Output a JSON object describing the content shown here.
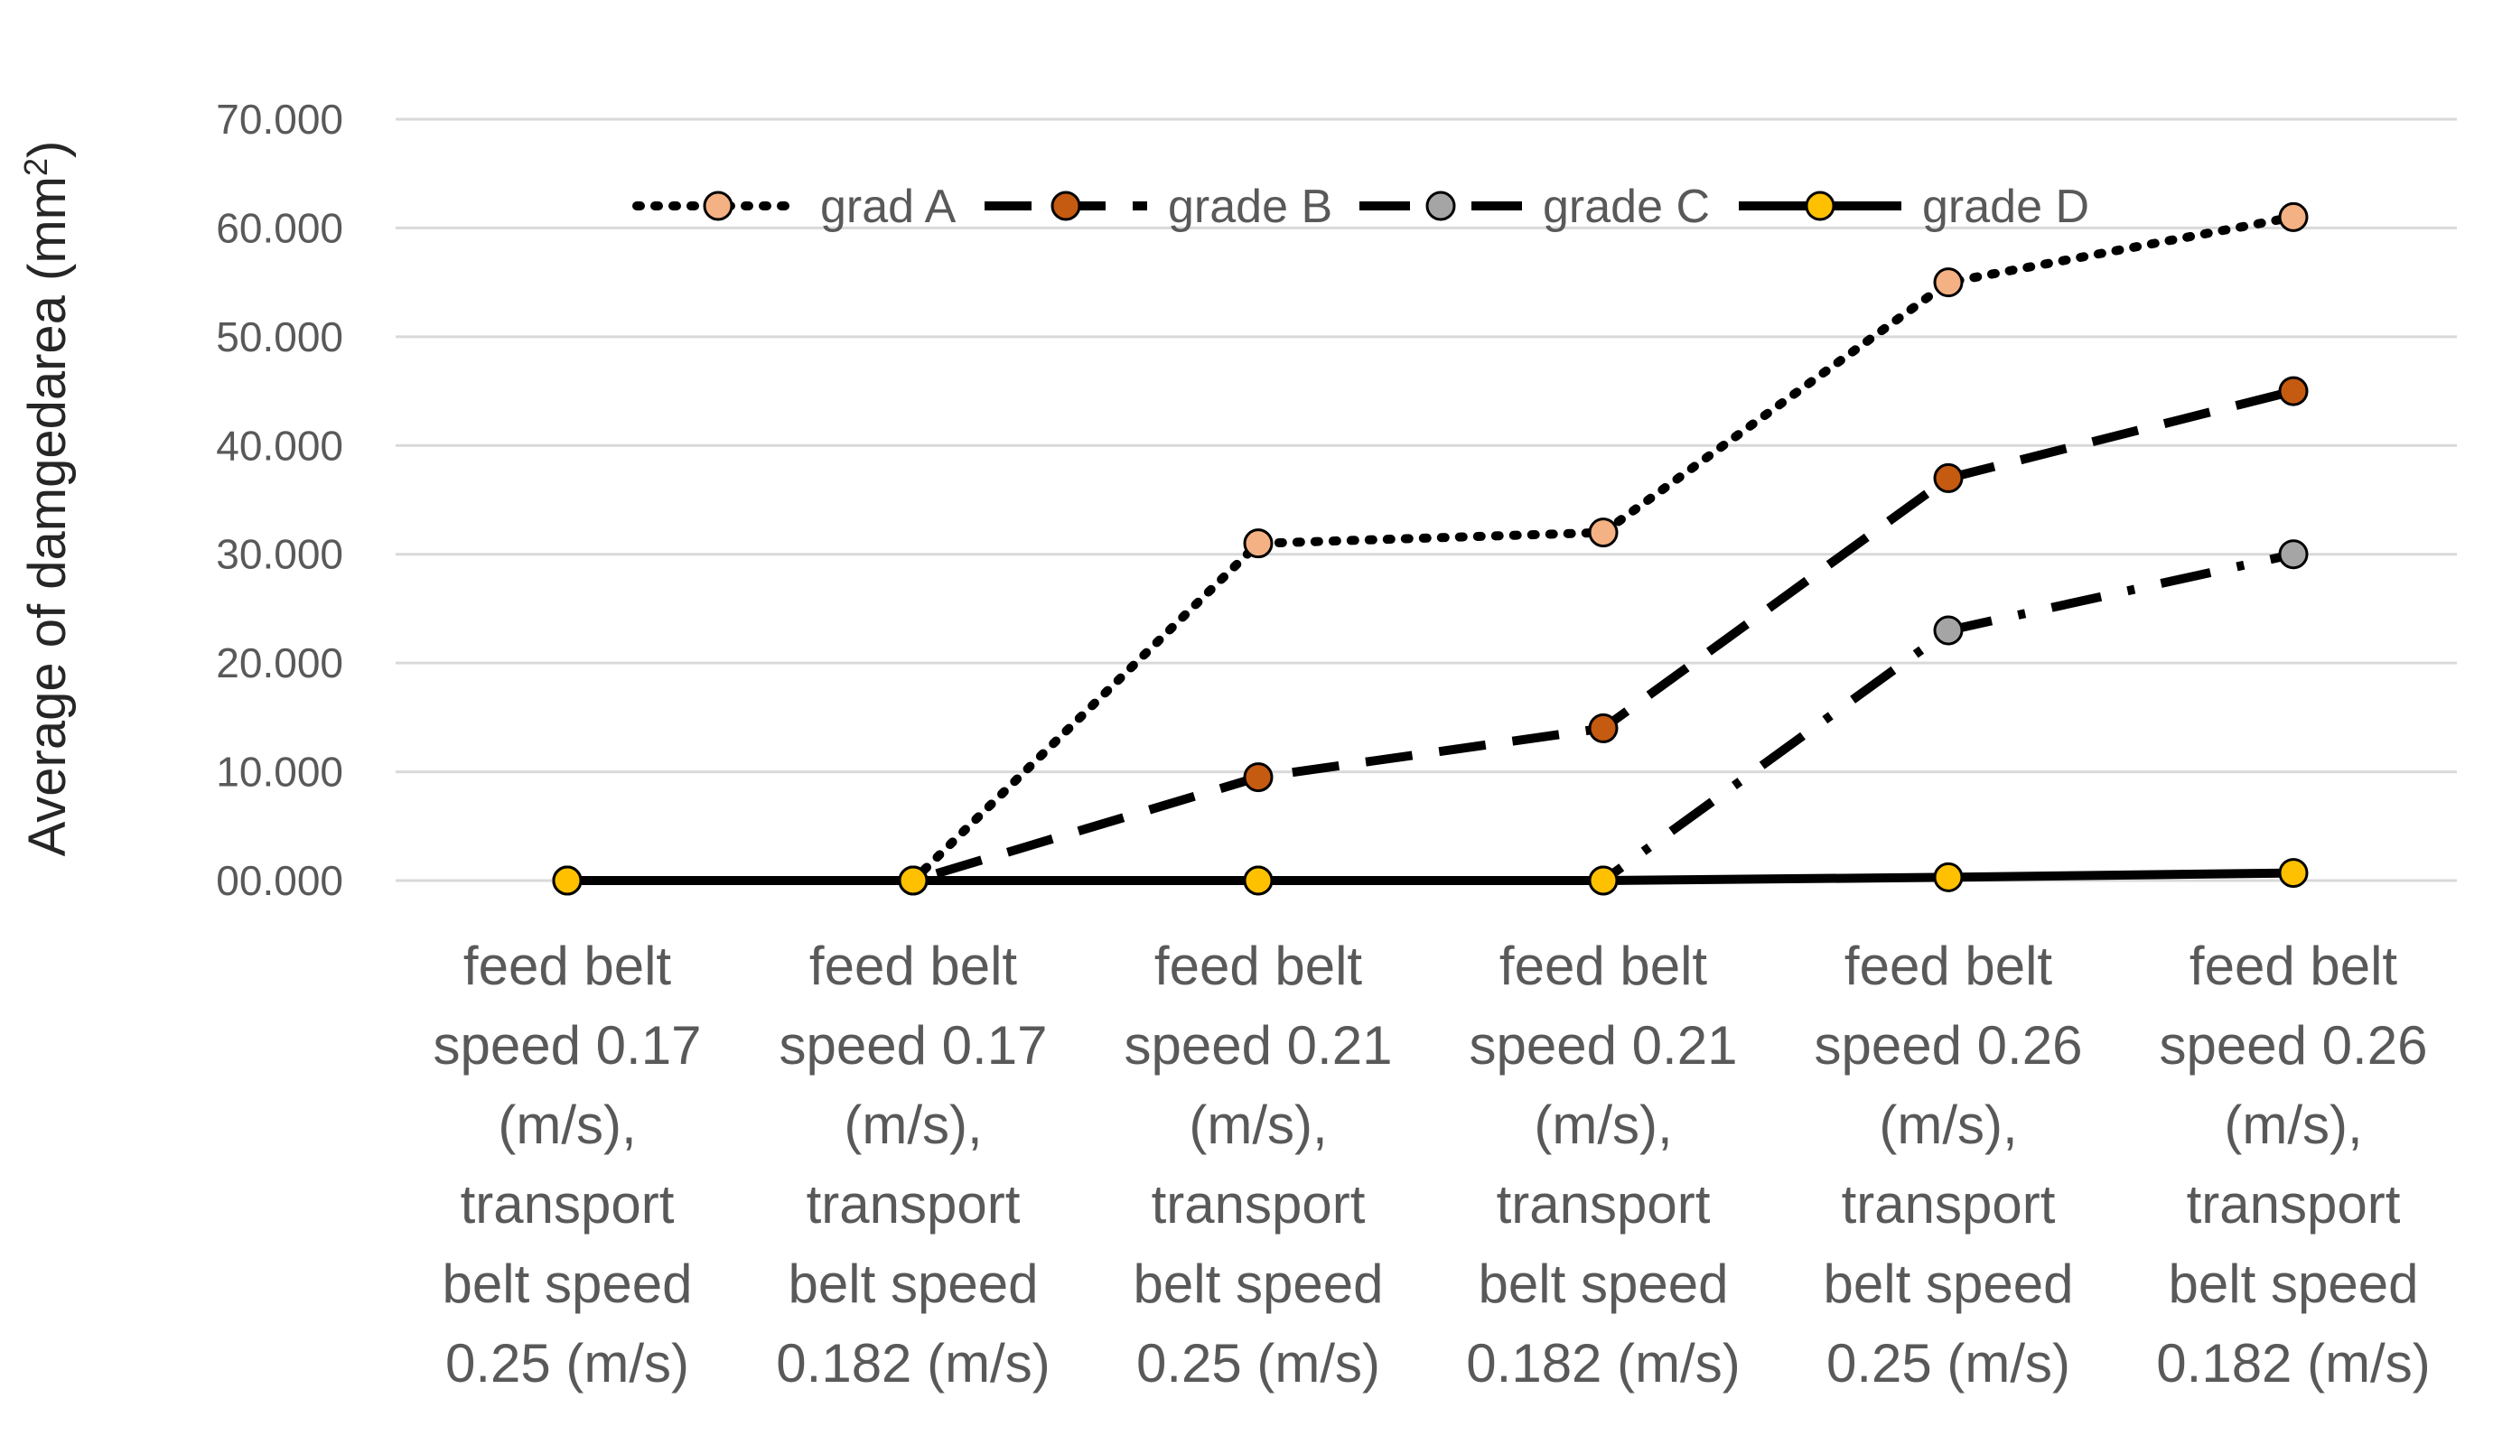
{
  "chart_data": {
    "type": "line",
    "title": "",
    "xlabel": "",
    "ylabel": "Average of damgedarea (mm²)",
    "ylabel_main": "Average of damgedarea (mm",
    "ylabel_sup": "2",
    "ylabel_close": ")",
    "ylim": [
      0,
      70
    ],
    "yticks": [
      0,
      10,
      20,
      30,
      40,
      50,
      60,
      70
    ],
    "ytick_labels": [
      "00.000",
      "10.000",
      "20.000",
      "30.000",
      "40.000",
      "50.000",
      "60.000",
      "70.000"
    ],
    "grid": true,
    "legend_position": "top",
    "categories": [
      [
        "feed belt",
        "speed 0.17",
        "(m/s),",
        "transport",
        "belt speed",
        "0.25 (m/s)"
      ],
      [
        "feed belt",
        "speed 0.17",
        "(m/s),",
        "transport",
        "belt speed",
        "0.182 (m/s)"
      ],
      [
        "feed belt",
        "speed 0.21",
        "(m/s),",
        "transport",
        "belt speed",
        "0.25 (m/s)"
      ],
      [
        "feed belt",
        "speed 0.21",
        "(m/s),",
        "transport",
        "belt speed",
        "0.182 (m/s)"
      ],
      [
        "feed belt",
        "speed 0.26",
        "(m/s),",
        "transport",
        "belt speed",
        "0.25 (m/s)"
      ],
      [
        "feed belt",
        "speed 0.26",
        "(m/s),",
        "transport",
        "belt speed",
        "0.182 (m/s)"
      ]
    ],
    "series": [
      {
        "name": "grad A",
        "values": [
          0,
          0,
          31,
          32,
          55,
          61
        ],
        "marker_color": "#F4B183",
        "line_style": "dotted"
      },
      {
        "name": "grade B",
        "values": [
          0,
          0,
          9.5,
          14,
          37,
          45
        ],
        "marker_color": "#C55A11",
        "line_style": "dashed"
      },
      {
        "name": "grade C",
        "values": [
          0,
          0,
          0,
          0,
          23,
          30
        ],
        "marker_color": "#A5A5A5",
        "line_style": "dashdot"
      },
      {
        "name": "grade D",
        "values": [
          0,
          0,
          0,
          0,
          0.3,
          0.7
        ],
        "marker_color": "#FFC000",
        "line_style": "solid"
      }
    ]
  },
  "colors": {
    "line": "#000000",
    "grid": "#d9d9d9",
    "text": "#595959"
  }
}
